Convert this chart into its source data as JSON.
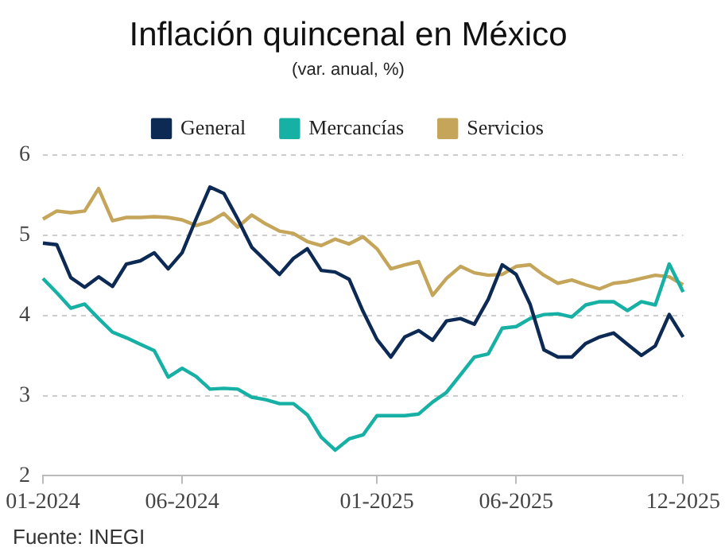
{
  "chart_data": {
    "type": "line",
    "title": "Inflación quincenal en México",
    "subtitle": "(var. anual, %)",
    "categories": [
      "01-2024",
      null,
      null,
      null,
      null,
      null,
      null,
      null,
      null,
      null,
      "06-2024",
      null,
      null,
      null,
      null,
      null,
      null,
      null,
      null,
      null,
      null,
      null,
      null,
      null,
      "01-2025",
      null,
      null,
      null,
      null,
      null,
      null,
      null,
      null,
      null,
      "06-2025",
      null,
      null,
      null,
      null,
      null,
      null,
      null,
      null,
      null,
      null,
      null,
      "12-2025"
    ],
    "series": [
      {
        "name": "General",
        "color": "#0d2a55",
        "values": [
          4.9,
          4.88,
          4.47,
          4.35,
          4.48,
          4.36,
          4.64,
          4.68,
          4.78,
          4.58,
          4.78,
          5.2,
          5.6,
          5.52,
          5.2,
          4.85,
          4.68,
          4.51,
          4.71,
          4.83,
          4.56,
          4.54,
          4.45,
          4.05,
          3.7,
          3.48,
          3.73,
          3.81,
          3.69,
          3.93,
          3.96,
          3.89,
          4.2,
          4.63,
          4.51,
          4.14,
          3.57,
          3.48,
          3.48,
          3.65,
          3.73,
          3.78,
          3.64,
          3.5,
          3.62,
          4.01,
          3.73
        ]
      },
      {
        "name": "Mercancías",
        "color": "#16b0a5",
        "values": [
          4.46,
          4.28,
          4.09,
          4.14,
          3.96,
          3.79,
          3.72,
          3.64,
          3.56,
          3.23,
          3.34,
          3.24,
          3.08,
          3.09,
          3.08,
          2.98,
          2.95,
          2.9,
          2.9,
          2.76,
          2.48,
          2.32,
          2.46,
          2.51,
          2.75,
          2.75,
          2.75,
          2.77,
          2.92,
          3.04,
          3.26,
          3.48,
          3.52,
          3.84,
          3.86,
          3.96,
          4.01,
          4.02,
          3.98,
          4.13,
          4.17,
          4.17,
          4.06,
          4.17,
          4.13,
          4.64,
          4.29
        ]
      },
      {
        "name": "Servicios",
        "color": "#c4a55a",
        "values": [
          5.2,
          5.3,
          5.28,
          5.3,
          5.58,
          5.18,
          5.22,
          5.22,
          5.23,
          5.22,
          5.19,
          5.12,
          5.17,
          5.27,
          5.1,
          5.25,
          5.14,
          5.05,
          5.02,
          4.92,
          4.87,
          4.95,
          4.89,
          4.98,
          4.83,
          4.58,
          4.63,
          4.67,
          4.25,
          4.46,
          4.61,
          4.53,
          4.5,
          4.51,
          4.61,
          4.63,
          4.5,
          4.4,
          4.44,
          4.38,
          4.33,
          4.4,
          4.42,
          4.46,
          4.5,
          4.48,
          4.38
        ]
      }
    ],
    "ylim": [
      2,
      6
    ],
    "yticks": [
      2,
      3,
      4,
      5,
      6
    ],
    "grid": "y",
    "legend": "top",
    "marker": "none",
    "line_style": "solid",
    "annotations": [
      "Fuente: INEGI"
    ]
  }
}
